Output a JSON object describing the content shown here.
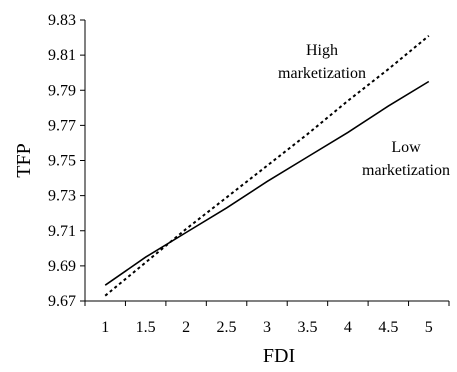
{
  "chart_data": {
    "type": "line",
    "xlabel": "FDI",
    "ylabel": "TFP",
    "xlim": [
      0.75,
      5.25
    ],
    "ylim": [
      9.67,
      9.83
    ],
    "x_ticks": [
      "1",
      "1.5",
      "2",
      "2.5",
      "3",
      "3.5",
      "4",
      "4.5",
      "5"
    ],
    "y_ticks": [
      "9.67",
      "9.69",
      "9.71",
      "9.73",
      "9.75",
      "9.77",
      "9.79",
      "9.81",
      "9.83"
    ],
    "grid": false,
    "series": [
      {
        "name": "Low marketization",
        "style": "solid",
        "color": "#000000",
        "x": [
          1,
          1.5,
          2,
          2.5,
          3,
          3.5,
          4,
          4.5,
          5
        ],
        "y": [
          9.679,
          9.695,
          9.709,
          9.723,
          9.738,
          9.752,
          9.766,
          9.781,
          9.795
        ]
      },
      {
        "name": "High marketization",
        "style": "dotted",
        "color": "#000000",
        "x": [
          1,
          1.5,
          2,
          2.5,
          3,
          3.5,
          4,
          4.5,
          5
        ],
        "y": [
          9.673,
          9.692,
          9.711,
          9.729,
          9.747,
          9.765,
          9.784,
          9.802,
          9.821
        ]
      }
    ],
    "annotations": [
      {
        "series": "High marketization",
        "lines": [
          "High",
          "marketization"
        ]
      },
      {
        "series": "Low marketization",
        "lines": [
          "Low",
          "marketization"
        ]
      }
    ]
  }
}
